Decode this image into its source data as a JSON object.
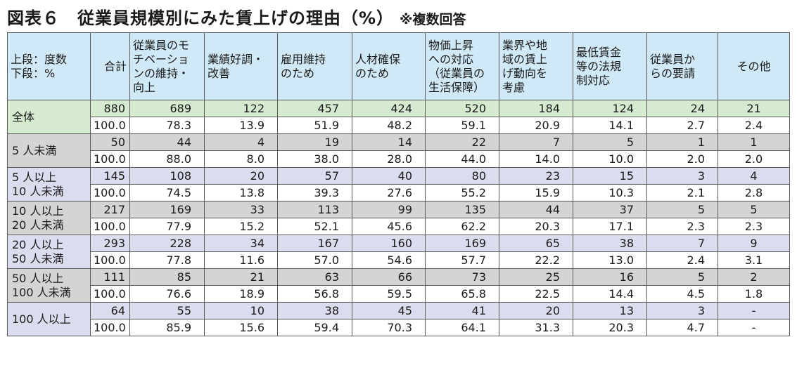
{
  "title": "図表６　従業員規模別にみた賃上げの理由（%）",
  "note": "※複数回答",
  "header": {
    "corner": [
      "上段：度数",
      "下段：%"
    ],
    "columns": [
      [
        "合計"
      ],
      [
        "従業員のモ",
        "チベーショ",
        "ンの維持・",
        "向上"
      ],
      [
        "業績好調・",
        "改善"
      ],
      [
        "雇用維持",
        "のため"
      ],
      [
        "人材確保",
        "のため"
      ],
      [
        "物価上昇",
        "への対応",
        "（従業員の",
        "生活保障）"
      ],
      [
        "業界や地",
        "域の賃上",
        "げ動向を",
        "考慮"
      ],
      [
        "最低賃金",
        "等の法規",
        "制対応"
      ],
      [
        "従業員か",
        "らの要請"
      ],
      [
        "その他"
      ]
    ]
  },
  "groups": [
    {
      "label": [
        "全体"
      ],
      "style": "total",
      "count": [
        "880",
        "689",
        "122",
        "457",
        "424",
        "520",
        "184",
        "124",
        "24",
        "21"
      ],
      "pct": [
        "100.0",
        "78.3",
        "13.9",
        "51.9",
        "48.2",
        "59.1",
        "20.9",
        "14.1",
        "2.7",
        "2.4"
      ]
    },
    {
      "label": [
        "5 人未満"
      ],
      "style": "gray",
      "count": [
        "50",
        "44",
        "4",
        "19",
        "14",
        "22",
        "7",
        "5",
        "1",
        "1"
      ],
      "pct": [
        "100.0",
        "88.0",
        "8.0",
        "38.0",
        "28.0",
        "44.0",
        "14.0",
        "10.0",
        "2.0",
        "2.0"
      ]
    },
    {
      "label": [
        "5 人以上",
        "10 人未満"
      ],
      "style": "lav",
      "count": [
        "145",
        "108",
        "20",
        "57",
        "40",
        "80",
        "23",
        "15",
        "3",
        "4"
      ],
      "pct": [
        "100.0",
        "74.5",
        "13.8",
        "39.3",
        "27.6",
        "55.2",
        "15.9",
        "10.3",
        "2.1",
        "2.8"
      ]
    },
    {
      "label": [
        "10 人以上",
        "20 人未満"
      ],
      "style": "gray",
      "count": [
        "217",
        "169",
        "33",
        "113",
        "99",
        "135",
        "44",
        "37",
        "5",
        "5"
      ],
      "pct": [
        "100.0",
        "77.9",
        "15.2",
        "52.1",
        "45.6",
        "62.2",
        "20.3",
        "17.1",
        "2.3",
        "2.3"
      ]
    },
    {
      "label": [
        "20 人以上",
        "50 人未満"
      ],
      "style": "lav",
      "count": [
        "293",
        "228",
        "34",
        "167",
        "160",
        "169",
        "65",
        "38",
        "7",
        "9"
      ],
      "pct": [
        "100.0",
        "77.8",
        "11.6",
        "57.0",
        "54.6",
        "57.7",
        "22.2",
        "13.0",
        "2.4",
        "3.1"
      ]
    },
    {
      "label": [
        "50 人以上",
        "100 人未満"
      ],
      "style": "gray",
      "count": [
        "111",
        "85",
        "21",
        "63",
        "66",
        "73",
        "25",
        "16",
        "5",
        "2"
      ],
      "pct": [
        "100.0",
        "76.6",
        "18.9",
        "56.8",
        "59.5",
        "65.8",
        "22.5",
        "14.4",
        "4.5",
        "1.8"
      ]
    },
    {
      "label": [
        "100 人以上"
      ],
      "style": "lav",
      "count": [
        "64",
        "55",
        "10",
        "38",
        "45",
        "41",
        "20",
        "13",
        "3",
        "-"
      ],
      "pct": [
        "100.0",
        "85.9",
        "15.6",
        "59.4",
        "70.3",
        "64.1",
        "31.3",
        "20.3",
        "4.7",
        "-"
      ]
    }
  ],
  "colors": {
    "header_bg": "#cfe9f7",
    "total_bg": "#d6ead0",
    "gray_bg": "#d4d4d4",
    "lavender_bg": "#dcdcef"
  }
}
